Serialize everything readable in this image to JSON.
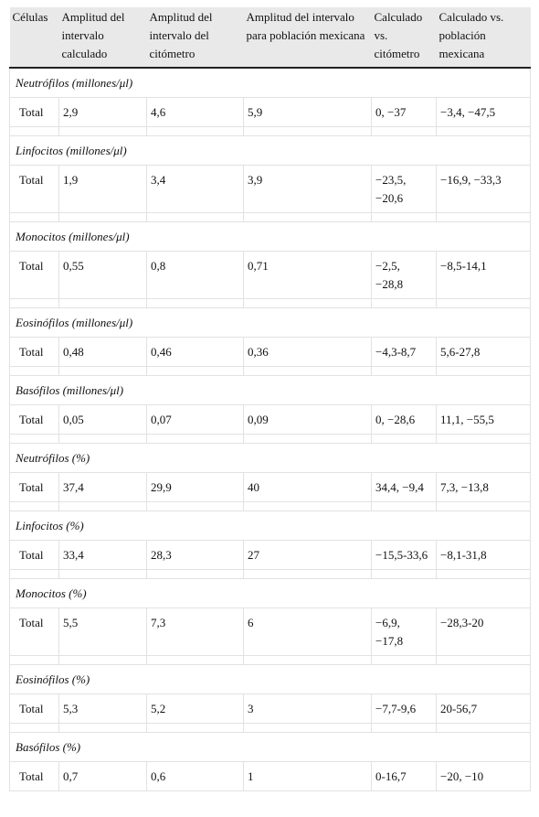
{
  "table": {
    "header": [
      "Células",
      "Amplitud del intervalo calculado",
      "Amplitud del intervalo del citómetro",
      "Amplitud del intervalo para población mexicana",
      "Calculado vs. citómetro",
      "Calculado vs. población mexicana"
    ],
    "sections": [
      {
        "title": "Neutrófilos (millones/μl)",
        "row": [
          "Total",
          "2,9",
          "4,6",
          "5,9",
          "0, −37",
          "−3,4, −47,5"
        ]
      },
      {
        "title": "Linfocitos (millones/μl)",
        "row": [
          "Total",
          "1,9",
          "3,4",
          "3,9",
          "−23,5, −20,6",
          "−16,9, −33,3"
        ]
      },
      {
        "title": "Monocitos (millones/μl)",
        "row": [
          "Total",
          "0,55",
          "0,8",
          "0,71",
          "−2,5, −28,8",
          "−8,5-14,1"
        ]
      },
      {
        "title": "Eosinófilos (millones/μl)",
        "row": [
          "Total",
          "0,48",
          "0,46",
          "0,36",
          "−4,3-8,7",
          "5,6-27,8"
        ]
      },
      {
        "title": "Basófilos (millones/μl)",
        "row": [
          "Total",
          "0,05",
          "0,07",
          "0,09",
          "0, −28,6",
          "11,1, −55,5"
        ]
      },
      {
        "title": "Neutrófilos (%)",
        "row": [
          "Total",
          "37,4",
          "29,9",
          "40",
          "34,4, −9,4",
          "7,3, −13,8"
        ]
      },
      {
        "title": "Linfocitos (%)",
        "row": [
          "Total",
          "33,4",
          "28,3",
          "27",
          "−15,5-33,6",
          "−8,1-31,8"
        ]
      },
      {
        "title": "Monocitos (%)",
        "row": [
          "Total",
          "5,5",
          "7,3",
          "6",
          "−6,9, −17,8",
          "−28,3-20"
        ]
      },
      {
        "title": "Eosinófilos (%)",
        "row": [
          "Total",
          "5,3",
          "5,2",
          "3",
          "−7,7-9,6",
          "20-56,7"
        ]
      },
      {
        "title": "Basófilos (%)",
        "row": [
          "Total",
          "0,7",
          "0,6",
          "1",
          "0-16,7",
          "−20, −10"
        ]
      }
    ]
  }
}
